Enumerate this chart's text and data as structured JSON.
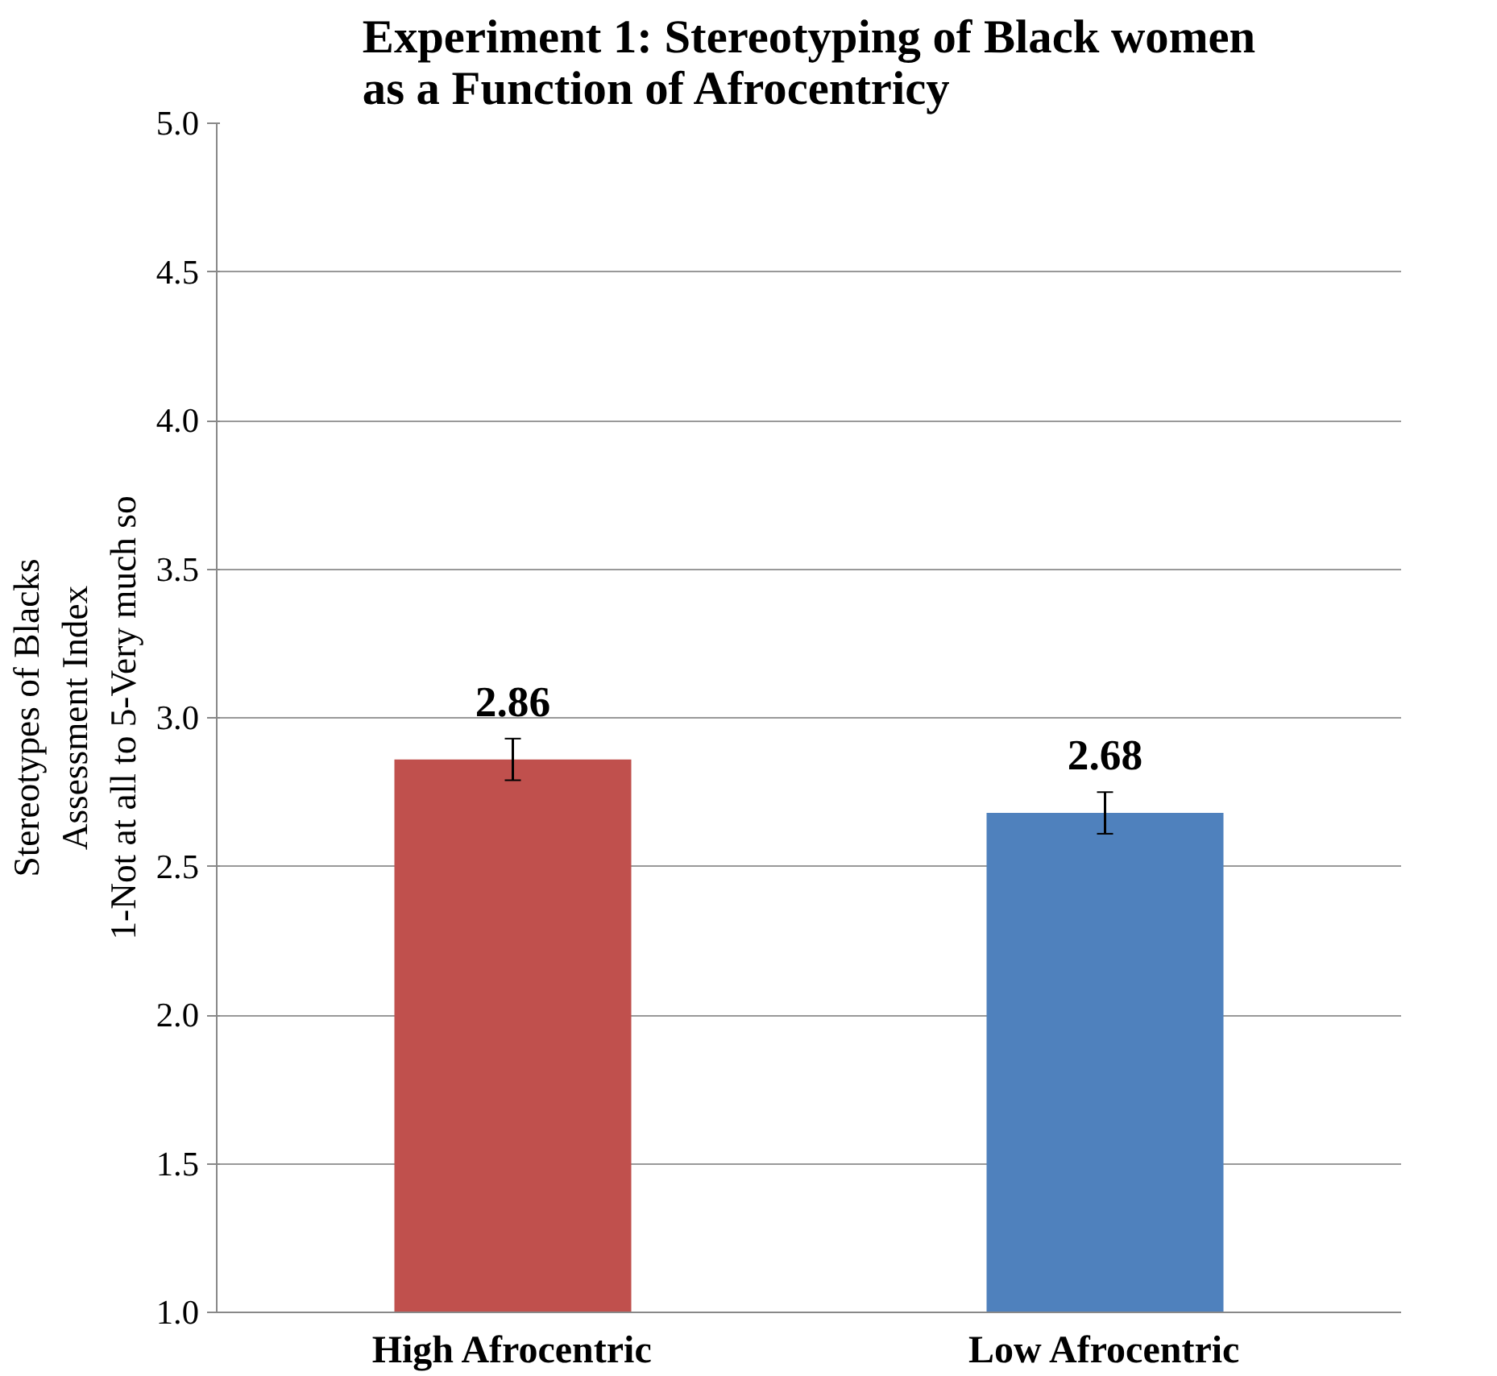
{
  "chart_data": {
    "type": "bar",
    "title": "Experiment 1: Stereotyping of Black women\nas a Function of Afrocentricy",
    "ylabel": "Stereotypes of Blacks\nAssessment Index\n1-Not at all to 5-Very much so",
    "categories": [
      "High Afrocentric",
      "Low Afrocentric"
    ],
    "values": [
      2.86,
      2.68
    ],
    "colors": [
      "#c0504d",
      "#4f81bd"
    ],
    "errors": [
      0.07,
      0.07
    ],
    "data_labels": true,
    "ylim": [
      1.0,
      5.0
    ],
    "yticks": [
      {
        "value": 1,
        "label": "1.0"
      },
      {
        "value": 1.5,
        "label": "1.5"
      },
      {
        "value": 2,
        "label": "2.0"
      },
      {
        "value": 2.5,
        "label": "2.5"
      },
      {
        "value": 3,
        "label": "3.0"
      },
      {
        "value": 3.5,
        "label": "3.5"
      },
      {
        "value": 4,
        "label": "4.0"
      },
      {
        "value": 4.5,
        "label": "4.5"
      },
      {
        "value": 5,
        "label": "5.0"
      }
    ],
    "grid": "y"
  }
}
